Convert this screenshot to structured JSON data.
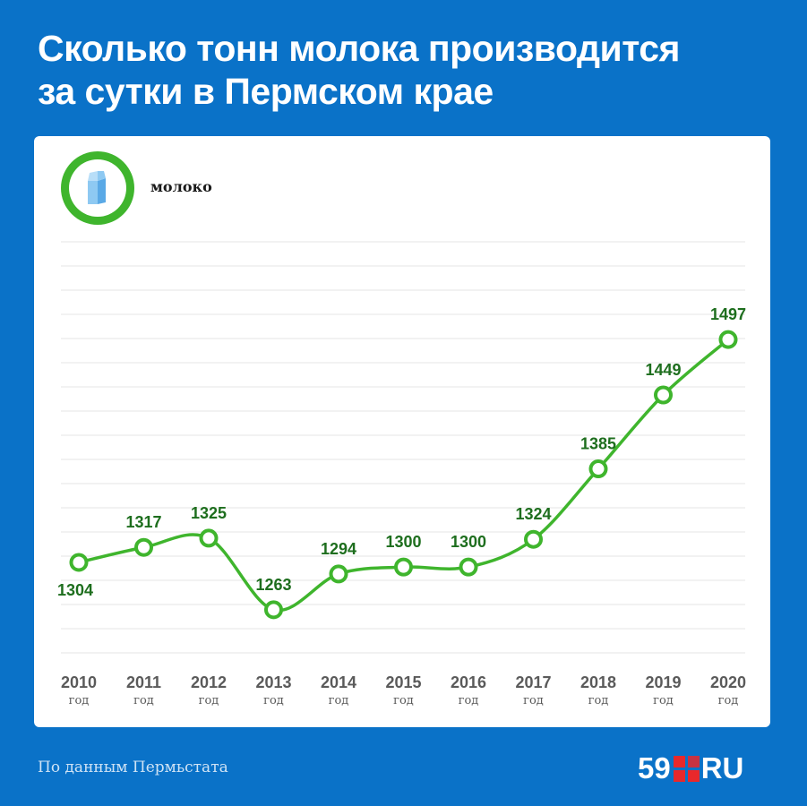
{
  "header": {
    "title_line1": "Сколько тонн молока производится",
    "title_line2": "за сутки в Пермском крае"
  },
  "legend": {
    "label": "молоко",
    "icon": "milk-carton-icon"
  },
  "footer": {
    "source": "По данным Пермьстата",
    "logo_num": "59",
    "logo_text": "RU"
  },
  "colors": {
    "background": "#0a72c8",
    "line": "#3fb52d",
    "label": "#1e6e1e",
    "grid": "#e6e6e6",
    "tick": "#5a5a5a"
  },
  "chart_data": {
    "type": "line",
    "title": "Сколько тонн молока производится за сутки в Пермском крае",
    "categories": [
      "2010",
      "2011",
      "2012",
      "2013",
      "2014",
      "2015",
      "2016",
      "2017",
      "2018",
      "2019",
      "2020"
    ],
    "category_suffix": "год",
    "series": [
      {
        "name": "молоко",
        "values": [
          1304,
          1317,
          1325,
          1263,
          1294,
          1300,
          1300,
          1324,
          1385,
          1449,
          1497
        ]
      }
    ],
    "grid": true,
    "legend": "top-left"
  }
}
